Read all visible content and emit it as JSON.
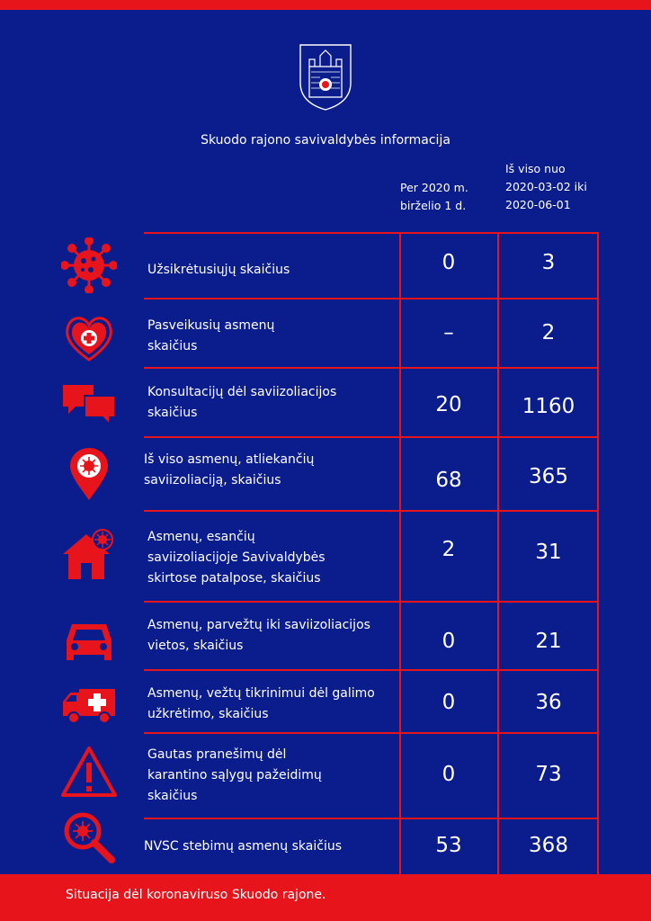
{
  "header": {
    "title": "Skuodo rajono savivaldybės informacija",
    "col1": [
      "Per 2020 m.",
      "birželio 1 d."
    ],
    "col2": [
      "Iš viso nuo",
      "2020-03-02 iki",
      "2020-06-01"
    ]
  },
  "rows": [
    {
      "icon": "virus-icon",
      "label": [
        "Užsikrėtusiųjų skaičius"
      ],
      "v1": "0",
      "v2": "3"
    },
    {
      "icon": "heart-medical-icon",
      "label": [
        "Pasveikusių asmenų",
        "skaičius"
      ],
      "v1": "–",
      "v2": "2"
    },
    {
      "icon": "chat-bubbles-icon",
      "label": [
        "Konsultacijų dėl saviizoliacijos",
        "skaičius"
      ],
      "v1": "20",
      "v2": "1160"
    },
    {
      "icon": "location-virus-icon",
      "label": [
        "Iš viso asmenų, atliekančių",
        "saviizoliaciją, skaičius"
      ],
      "v1": "68",
      "v2": "365"
    },
    {
      "icon": "house-virus-icon",
      "label": [
        "Asmenų, esančių",
        "saviizoliacijoje Savivaldybės",
        "skirtose patalpose, skaičius"
      ],
      "v1": "2",
      "v2": "31"
    },
    {
      "icon": "car-icon",
      "label": [
        "Asmenų, parvežtų iki saviizoliacijos",
        "vietos, skaičius"
      ],
      "v1": "0",
      "v2": "21"
    },
    {
      "icon": "ambulance-icon",
      "label": [
        "Asmenų, vežtų tikrinimui dėl galimo",
        "užkrėtimo, skaičius"
      ],
      "v1": "0",
      "v2": "36"
    },
    {
      "icon": "warning-icon",
      "label": [
        "Gautas pranešimų dėl",
        "karantino sąlygų pažeidimų",
        "skaičius"
      ],
      "v1": "0",
      "v2": "73"
    },
    {
      "icon": "magnifier-virus-icon",
      "label": [
        "NVSC stebimų asmenų skaičius"
      ],
      "v1": "53",
      "v2": "368"
    }
  ],
  "footer": "Situacija dėl koronaviruso Skuodo rajone.",
  "colors": {
    "background": "#0b1c8c",
    "accent": "#e8141b",
    "text": "#ffffff"
  }
}
